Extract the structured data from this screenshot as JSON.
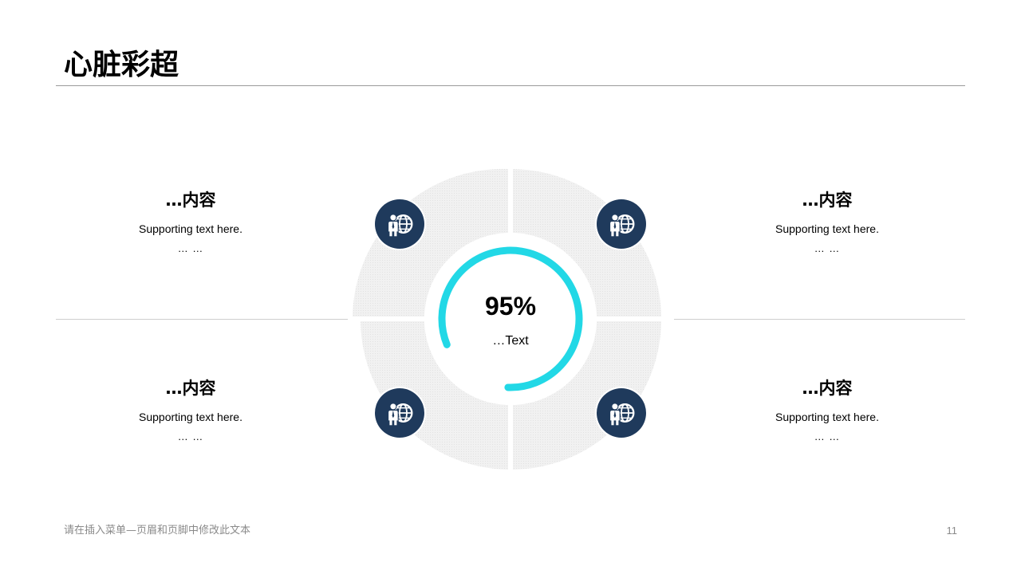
{
  "title": "心脏彩超",
  "blocks": [
    {
      "heading": "…内容",
      "support": "Supporting text here.",
      "ellipsis": "… …"
    },
    {
      "heading": "…内容",
      "support": "Supporting text here.",
      "ellipsis": "… …"
    },
    {
      "heading": "…内容",
      "support": "Supporting text here.",
      "ellipsis": "… …"
    },
    {
      "heading": "…内容",
      "support": "Supporting text here.",
      "ellipsis": "… …"
    }
  ],
  "center": {
    "value": "95%",
    "label": "…Text",
    "progress": 0.95,
    "progress_color": "#22d8e6"
  },
  "icons": [
    "business-globe-icon",
    "business-globe-icon",
    "business-globe-icon",
    "business-globe-icon"
  ],
  "colors": {
    "icon_bg": "#1f3a5c",
    "segment_fill": "#efefef",
    "divider": "#cfcfcf"
  },
  "footer": {
    "text": "请在插入菜单—页眉和页脚中修改此文本",
    "page_number": "11"
  }
}
